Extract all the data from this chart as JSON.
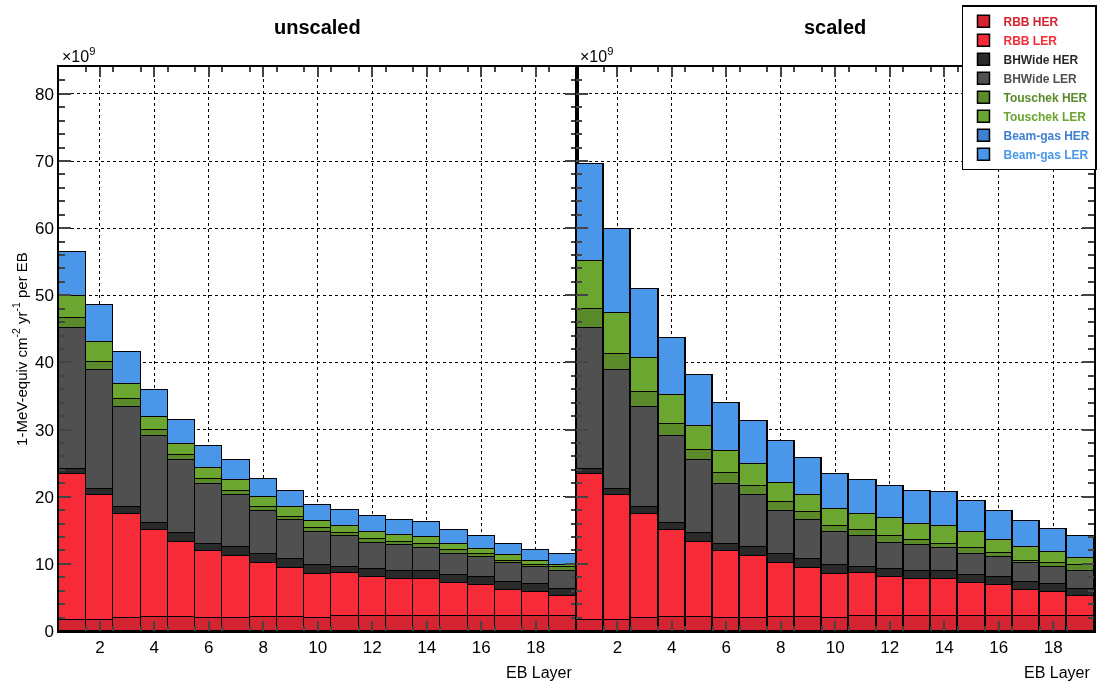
{
  "chart_data": [
    {
      "type": "bar",
      "title": "unscaled",
      "xlabel": "EB Layer",
      "ylabel": "1-MeV-equiv cm$^{-2}$ yr$^{-1}$ per EB",
      "annotations": [
        "×10$^{9}$"
      ],
      "stacked": true,
      "x": [
        1,
        2,
        3,
        4,
        5,
        6,
        7,
        8,
        9,
        10,
        11,
        12,
        13,
        14,
        15,
        16,
        17,
        18,
        19
      ],
      "series": [
        {
          "name": "RBB HER",
          "color": "#d42432",
          "values": [
            1.6,
            1.7,
            1.9,
            2.1,
            2.1,
            2.0,
            2.0,
            2.1,
            2.1,
            2.0,
            2.2,
            2.2,
            2.2,
            2.3,
            2.3,
            2.2,
            2.2,
            2.2,
            2.2
          ]
        },
        {
          "name": "RBB LER",
          "color": "#f72a38",
          "values": [
            21.8,
            18.6,
            15.5,
            13.0,
            11.2,
            9.9,
            9.1,
            8.0,
            7.3,
            6.5,
            6.4,
            5.8,
            5.5,
            5.4,
            4.9,
            4.6,
            3.9,
            3.6,
            3.0
          ]
        },
        {
          "name": "BHWide HER",
          "color": "#2a2a2a",
          "values": [
            0.8,
            0.9,
            1.0,
            1.0,
            1.3,
            1.0,
            1.4,
            1.3,
            1.3,
            1.4,
            0.9,
            1.3,
            1.2,
            1.2,
            1.2,
            1.2,
            1.2,
            1.2,
            1.1
          ]
        },
        {
          "name": "BHWide LER",
          "color": "#505050",
          "values": [
            20.9,
            17.6,
            14.9,
            12.9,
            10.8,
            9.0,
            7.7,
            6.4,
            5.8,
            4.8,
            4.6,
            3.8,
            3.9,
            3.5,
            3.1,
            3.0,
            2.8,
            2.5,
            2.7
          ]
        },
        {
          "name": "Touschek HER",
          "color": "#5a8a2a",
          "values": [
            1.5,
            1.2,
            1.2,
            0.9,
            0.8,
            0.7,
            0.7,
            0.6,
            0.5,
            0.6,
            0.5,
            0.6,
            0.4,
            0.5,
            0.5,
            0.4,
            0.4,
            0.4,
            0.5
          ]
        },
        {
          "name": "Touschek LER",
          "color": "#6aa630",
          "values": [
            3.3,
            3.0,
            2.3,
            2.0,
            1.7,
            1.7,
            1.6,
            1.5,
            1.4,
            1.1,
            1.1,
            1.1,
            1.1,
            1.1,
            1.0,
            0.8,
            0.8,
            0.6,
            0.4
          ]
        },
        {
          "name": "Beam-gas HER",
          "color": "#3f7fcf",
          "values": [
            0,
            0,
            0,
            0,
            0,
            0,
            0,
            0,
            0,
            0,
            0,
            0,
            0,
            0,
            0,
            0,
            0,
            0,
            0
          ]
        },
        {
          "name": "Beam-gas LER",
          "color": "#4a96e8",
          "values": [
            6.6,
            5.6,
            4.7,
            4.0,
            3.5,
            3.3,
            2.9,
            2.8,
            2.5,
            2.3,
            2.3,
            2.4,
            2.3,
            2.2,
            2.1,
            1.9,
            1.7,
            1.6,
            1.5
          ]
        }
      ],
      "xlim": [
        0.5,
        19.5
      ],
      "xticks": [
        2,
        4,
        6,
        8,
        10,
        12,
        14,
        16,
        18
      ],
      "ylim": [
        0,
        84
      ],
      "yticks": [
        0,
        10,
        20,
        30,
        40,
        50,
        60,
        70,
        80
      ],
      "grid": true,
      "legend": "top right"
    },
    {
      "type": "bar",
      "title": "scaled",
      "xlabel": "EB Layer",
      "annotations": [
        "×10$^{9}$"
      ],
      "stacked": true,
      "x": [
        1,
        2,
        3,
        4,
        5,
        6,
        7,
        8,
        9,
        10,
        11,
        12,
        13,
        14,
        15,
        16,
        17,
        18,
        19
      ],
      "series": [
        {
          "color": "#d42432",
          "values": [
            1.6,
            1.7,
            1.9,
            2.1,
            2.1,
            2.0,
            2.0,
            2.1,
            2.1,
            2.0,
            2.2,
            2.2,
            2.2,
            2.3,
            2.3,
            2.2,
            2.2,
            2.2,
            2.2
          ]
        },
        {
          "color": "#f72a38",
          "values": [
            21.8,
            18.6,
            15.5,
            13.0,
            11.2,
            9.9,
            9.1,
            8.0,
            7.3,
            6.5,
            6.4,
            5.8,
            5.5,
            5.4,
            4.9,
            4.6,
            3.9,
            3.6,
            3.0
          ]
        },
        {
          "color": "#2a2a2a",
          "values": [
            0.8,
            0.9,
            1.0,
            1.0,
            1.3,
            1.0,
            1.4,
            1.3,
            1.3,
            1.4,
            0.9,
            1.3,
            1.2,
            1.2,
            1.2,
            1.2,
            1.2,
            1.2,
            1.1
          ]
        },
        {
          "color": "#505050",
          "values": [
            20.9,
            17.6,
            14.9,
            12.9,
            10.8,
            9.0,
            7.7,
            6.4,
            5.8,
            4.8,
            4.6,
            3.8,
            3.9,
            3.5,
            3.1,
            3.0,
            2.8,
            2.5,
            2.7
          ]
        },
        {
          "color": "#5a8a2a",
          "values": [
            2.8,
            2.4,
            2.3,
            1.8,
            1.6,
            1.6,
            1.4,
            1.4,
            1.2,
            1.0,
            0.9,
            1.0,
            0.8,
            0.6,
            0.8,
            0.6,
            0.4,
            0.6,
            0.9
          ]
        },
        {
          "color": "#6aa630",
          "values": [
            7.2,
            6.2,
            5.1,
            4.3,
            3.5,
            3.3,
            3.2,
            2.9,
            2.6,
            2.5,
            2.4,
            2.7,
            2.4,
            2.6,
            2.4,
            2.0,
            2.0,
            1.7,
            0.9
          ]
        },
        {
          "color": "#3f7fcf",
          "values": [
            0,
            0,
            0,
            0,
            0,
            0,
            0,
            0,
            0,
            0,
            0,
            0,
            0,
            0,
            0,
            0,
            0,
            0,
            0
          ]
        },
        {
          "color": "#4a96e8",
          "values": [
            14.4,
            12.4,
            10.2,
            8.6,
            7.7,
            7.2,
            6.5,
            6.2,
            5.5,
            5.2,
            5.1,
            4.8,
            4.9,
            5.1,
            4.6,
            4.2,
            3.9,
            3.4,
            3.4
          ]
        }
      ],
      "xlim": [
        0.5,
        19.5
      ],
      "xticks": [
        2,
        4,
        6,
        8,
        10,
        12,
        14,
        16,
        18
      ],
      "ylim": [
        0,
        84
      ],
      "yticks": [
        0,
        10,
        20,
        30,
        40,
        50,
        60,
        70,
        80
      ],
      "grid": true,
      "tick_labels": "x"
    }
  ]
}
